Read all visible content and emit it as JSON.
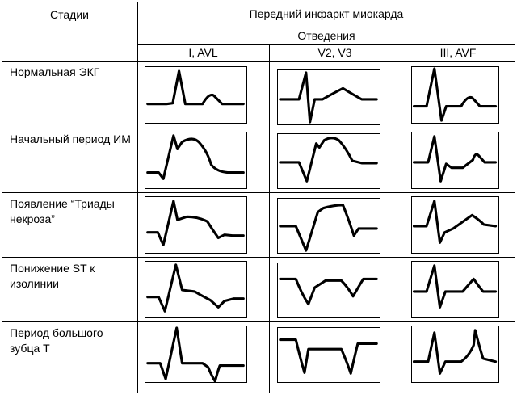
{
  "header": {
    "stages_label": "Стадии",
    "title": "Передний инфаркт миокарда",
    "leads_label": "Отведения",
    "leads": [
      "I, AVL",
      "V2, V3",
      "III, AVF"
    ]
  },
  "stages": [
    {
      "label": "Нормальная ЭКГ",
      "waveforms": [
        "normal-upright",
        "normal-rs",
        "normal-upright"
      ]
    },
    {
      "label": "Начальный период ИМ",
      "waveforms": [
        "st-elevation-monophasic",
        "st-elevation-rs",
        "reciprocal-st-depression"
      ]
    },
    {
      "label": "Появление “Триады некроза”",
      "waveforms": [
        "q-st-elevation-negative-t",
        "qs-st-elevation",
        "reciprocal-st-depression-upright-t"
      ]
    },
    {
      "label": "Понижение ST к изолинии",
      "waveforms": [
        "st-isoline-negative-t",
        "qs-negative-t",
        "upright-tall-t"
      ]
    },
    {
      "label": "Период большого зубца T",
      "waveforms": [
        "deep-negative-t",
        "qs-deep-negative-t",
        "tall-positive-t"
      ]
    }
  ]
}
